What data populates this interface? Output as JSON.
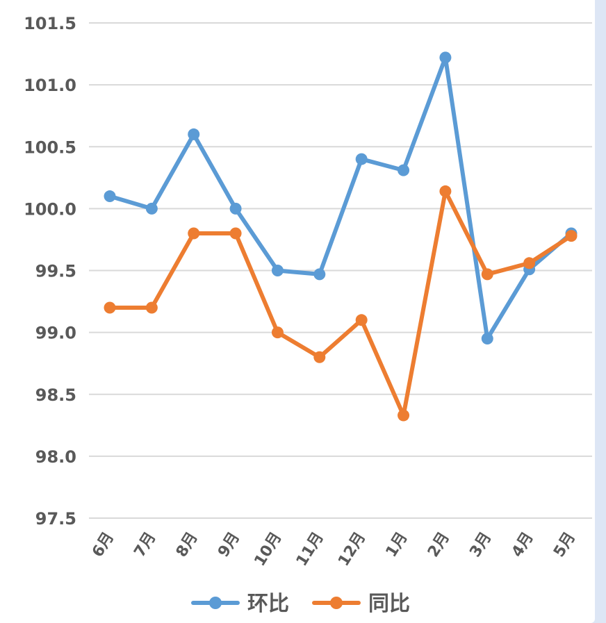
{
  "chart_data": {
    "type": "line",
    "categories": [
      "6月",
      "7月",
      "8月",
      "9月",
      "10月",
      "11月",
      "12月",
      "1月",
      "2月",
      "3月",
      "4月",
      "5月"
    ],
    "series": [
      {
        "name": "环比",
        "color": "#5b9bd5",
        "values": [
          100.1,
          100.0,
          100.6,
          100.0,
          99.5,
          99.47,
          100.4,
          100.31,
          101.22,
          98.95,
          99.51,
          99.8
        ]
      },
      {
        "name": "同比",
        "color": "#ed7d31",
        "values": [
          99.2,
          99.2,
          99.8,
          99.8,
          99.0,
          98.8,
          99.1,
          98.33,
          100.14,
          99.47,
          99.56,
          99.78
        ]
      }
    ],
    "yticks": [
      "97.5",
      "98.0",
      "98.5",
      "99.0",
      "99.5",
      "100.0",
      "100.5",
      "101.0",
      "101.5"
    ],
    "ylim": [
      97.5,
      101.5
    ],
    "grid": true,
    "legend": "bottom"
  }
}
